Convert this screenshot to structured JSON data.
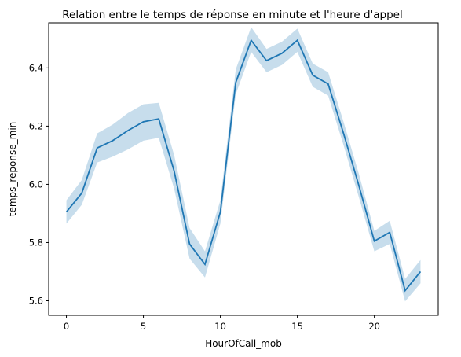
{
  "chart_data": {
    "type": "line",
    "title": "Relation entre le temps de réponse en minute et l'heure d'appel",
    "xlabel": "HourOfCall_mob",
    "ylabel": "temps_reponse_min",
    "xlim": [
      -1.15,
      24.15
    ],
    "ylim": [
      5.55,
      6.555
    ],
    "xticks": [
      0,
      5,
      10,
      15,
      20
    ],
    "yticks": [
      5.6,
      5.8,
      6.0,
      6.2,
      6.4
    ],
    "xtick_labels": [
      "0",
      "5",
      "10",
      "15",
      "20"
    ],
    "ytick_labels": [
      "5.6",
      "5.8",
      "6.0",
      "6.2",
      "6.4"
    ],
    "grid": false,
    "legend": "none",
    "colors": {
      "line": "#1f77b4",
      "band": "#1f77b4",
      "band_opacity": 0.25
    },
    "series": [
      {
        "x": [
          0,
          1,
          2,
          3,
          4,
          5,
          6,
          7,
          8,
          9,
          10,
          11,
          12,
          13,
          14,
          15,
          16,
          17,
          18,
          19,
          20,
          21,
          22,
          23
        ],
        "values": [
          5.905,
          5.97,
          6.125,
          6.15,
          6.185,
          6.215,
          6.225,
          6.045,
          5.795,
          5.725,
          5.905,
          6.35,
          6.495,
          6.425,
          6.45,
          6.495,
          6.375,
          6.345,
          6.175,
          5.995,
          5.805,
          5.835,
          5.635,
          5.7
        ],
        "ci_lower": [
          5.865,
          5.93,
          6.075,
          6.095,
          6.12,
          6.15,
          6.16,
          5.985,
          5.745,
          5.68,
          5.865,
          6.31,
          6.455,
          6.385,
          6.41,
          6.455,
          6.335,
          6.305,
          6.135,
          5.955,
          5.77,
          5.795,
          5.598,
          5.66
        ],
        "ci_upper": [
          5.945,
          6.015,
          6.175,
          6.205,
          6.245,
          6.275,
          6.28,
          6.1,
          5.85,
          5.77,
          5.945,
          6.395,
          6.54,
          6.465,
          6.49,
          6.535,
          6.415,
          6.385,
          6.215,
          6.035,
          5.84,
          5.875,
          5.675,
          5.74
        ]
      }
    ]
  }
}
